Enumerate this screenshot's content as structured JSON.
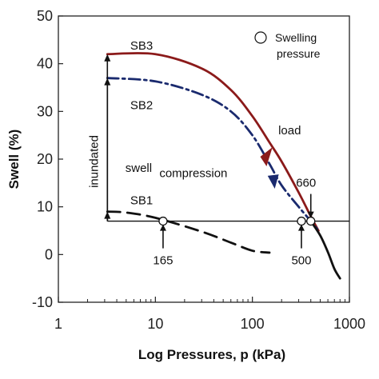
{
  "chart_data": {
    "type": "line",
    "xlabel": "Log Pressures, p (kPa)",
    "ylabel": "Swell (%)",
    "xscale": "log",
    "xlim": [
      1,
      1000
    ],
    "ylim": [
      -10,
      50
    ],
    "x_ticks": [
      "1",
      "10",
      "100",
      "1000"
    ],
    "y_ticks": [
      "-10",
      "0",
      "10",
      "20",
      "30",
      "40",
      "50"
    ],
    "legend": {
      "label": "Swelling pressure",
      "position": "top-right",
      "marker": "open-circle"
    },
    "series": [
      {
        "name": "SB3",
        "style": "solid",
        "color": "#8b1a1a",
        "x": [
          3.2,
          10,
          30,
          60,
          100,
          150,
          200,
          300,
          400,
          480
        ],
        "y": [
          42,
          42,
          39,
          34.5,
          29,
          23.5,
          19.5,
          13,
          8,
          5
        ]
      },
      {
        "name": "SB2",
        "style": "dash-dot",
        "color": "#1a2a6e",
        "x": [
          3.2,
          10,
          30,
          60,
          100,
          150,
          200,
          300,
          400,
          480
        ],
        "y": [
          37,
          36.3,
          33.5,
          30,
          25,
          19,
          14.5,
          10,
          7,
          5
        ]
      },
      {
        "name": "SB1",
        "style": "dashed",
        "color": "#111111",
        "x": [
          3.2,
          5,
          10,
          30,
          60,
          100,
          150
        ],
        "y": [
          9,
          8.8,
          7.7,
          4.8,
          2.5,
          0.8,
          0.4
        ]
      },
      {
        "name": "",
        "style": "solid",
        "color": "#111111",
        "x": [
          400,
          500,
          600,
          700,
          800
        ],
        "y": [
          7,
          4,
          0.5,
          -3,
          -5
        ]
      }
    ],
    "reference_line": {
      "y": 7,
      "x_from": 3.2,
      "x_to": 1000
    },
    "swelling_pressure_points": [
      {
        "x": 12,
        "y": 7,
        "label": "165"
      },
      {
        "x": 320,
        "y": 7,
        "label": "500"
      },
      {
        "x": 400,
        "y": 7,
        "label": "660"
      }
    ],
    "annotations": {
      "sb3": "SB3",
      "sb2": "SB2",
      "sb1": "SB1",
      "inundated": "inundated",
      "swell": "swell",
      "load": "load",
      "compression": "compression"
    }
  }
}
